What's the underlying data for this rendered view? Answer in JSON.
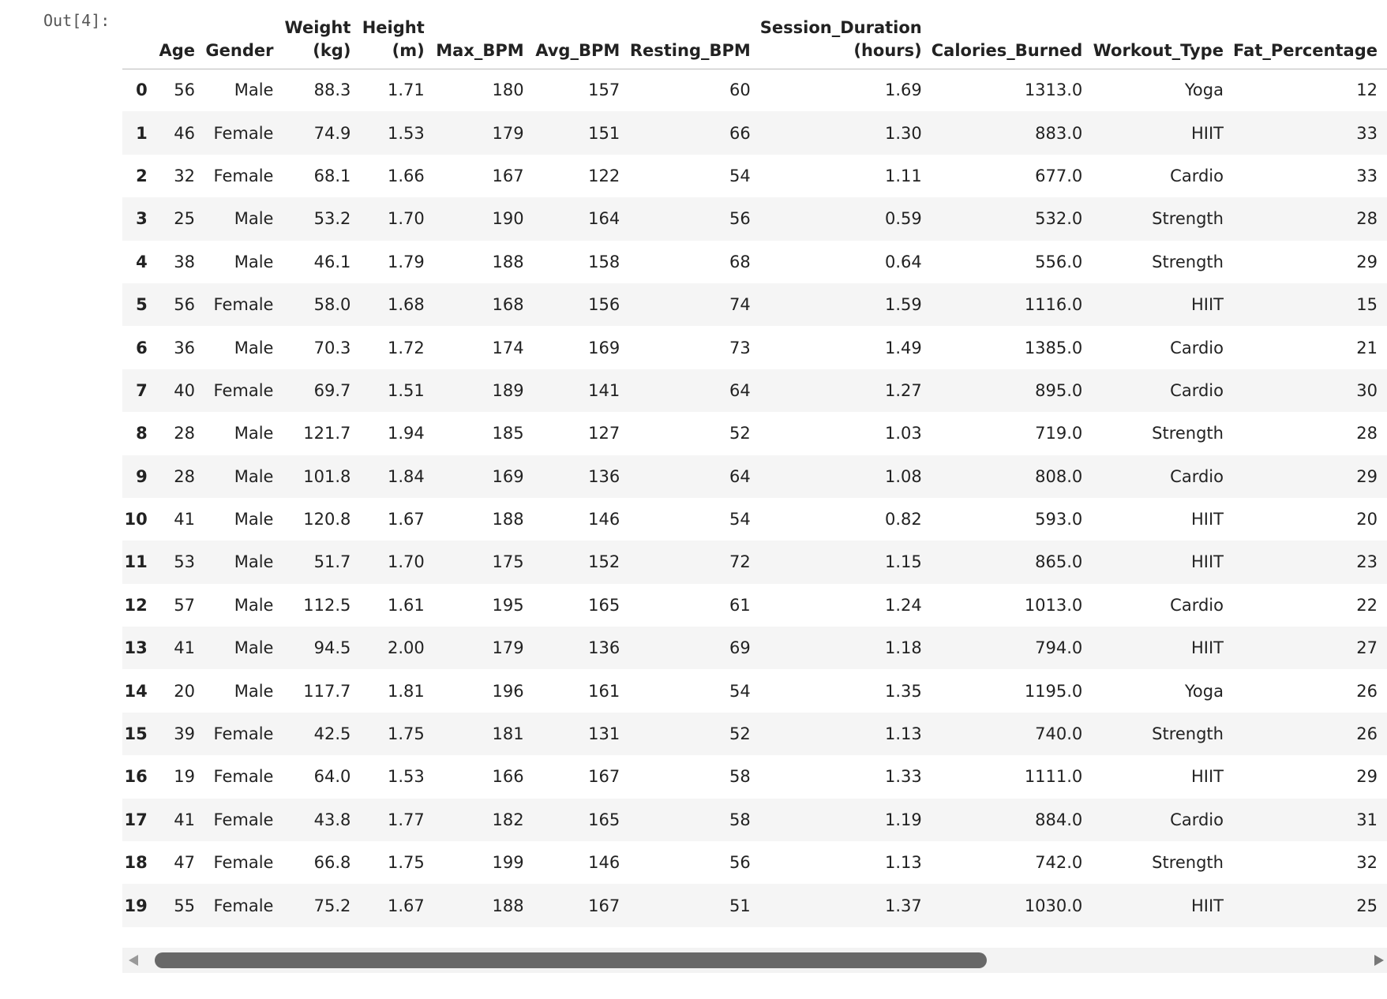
{
  "output_prompt": "Out[4]:",
  "table": {
    "columns": [
      "Age",
      "Gender",
      "Weight\n(kg)",
      "Height\n(m)",
      "Max_BPM",
      "Avg_BPM",
      "Resting_BPM",
      "Session_Duration\n(hours)",
      "Calories_Burned",
      "Workout_Type",
      "Fat_Percentage"
    ],
    "index": [
      "0",
      "1",
      "2",
      "3",
      "4",
      "5",
      "6",
      "7",
      "8",
      "9",
      "10",
      "11",
      "12",
      "13",
      "14",
      "15",
      "16",
      "17",
      "18",
      "19"
    ],
    "rows": [
      [
        "56",
        "Male",
        "88.3",
        "1.71",
        "180",
        "157",
        "60",
        "1.69",
        "1313.0",
        "Yoga",
        "12"
      ],
      [
        "46",
        "Female",
        "74.9",
        "1.53",
        "179",
        "151",
        "66",
        "1.30",
        "883.0",
        "HIIT",
        "33"
      ],
      [
        "32",
        "Female",
        "68.1",
        "1.66",
        "167",
        "122",
        "54",
        "1.11",
        "677.0",
        "Cardio",
        "33"
      ],
      [
        "25",
        "Male",
        "53.2",
        "1.70",
        "190",
        "164",
        "56",
        "0.59",
        "532.0",
        "Strength",
        "28"
      ],
      [
        "38",
        "Male",
        "46.1",
        "1.79",
        "188",
        "158",
        "68",
        "0.64",
        "556.0",
        "Strength",
        "29"
      ],
      [
        "56",
        "Female",
        "58.0",
        "1.68",
        "168",
        "156",
        "74",
        "1.59",
        "1116.0",
        "HIIT",
        "15"
      ],
      [
        "36",
        "Male",
        "70.3",
        "1.72",
        "174",
        "169",
        "73",
        "1.49",
        "1385.0",
        "Cardio",
        "21"
      ],
      [
        "40",
        "Female",
        "69.7",
        "1.51",
        "189",
        "141",
        "64",
        "1.27",
        "895.0",
        "Cardio",
        "30"
      ],
      [
        "28",
        "Male",
        "121.7",
        "1.94",
        "185",
        "127",
        "52",
        "1.03",
        "719.0",
        "Strength",
        "28"
      ],
      [
        "28",
        "Male",
        "101.8",
        "1.84",
        "169",
        "136",
        "64",
        "1.08",
        "808.0",
        "Cardio",
        "29"
      ],
      [
        "41",
        "Male",
        "120.8",
        "1.67",
        "188",
        "146",
        "54",
        "0.82",
        "593.0",
        "HIIT",
        "20"
      ],
      [
        "53",
        "Male",
        "51.7",
        "1.70",
        "175",
        "152",
        "72",
        "1.15",
        "865.0",
        "HIIT",
        "23"
      ],
      [
        "57",
        "Male",
        "112.5",
        "1.61",
        "195",
        "165",
        "61",
        "1.24",
        "1013.0",
        "Cardio",
        "22"
      ],
      [
        "41",
        "Male",
        "94.5",
        "2.00",
        "179",
        "136",
        "69",
        "1.18",
        "794.0",
        "HIIT",
        "27"
      ],
      [
        "20",
        "Male",
        "117.7",
        "1.81",
        "196",
        "161",
        "54",
        "1.35",
        "1195.0",
        "Yoga",
        "26"
      ],
      [
        "39",
        "Female",
        "42.5",
        "1.75",
        "181",
        "131",
        "52",
        "1.13",
        "740.0",
        "Strength",
        "26"
      ],
      [
        "19",
        "Female",
        "64.0",
        "1.53",
        "166",
        "167",
        "58",
        "1.33",
        "1111.0",
        "HIIT",
        "29"
      ],
      [
        "41",
        "Female",
        "43.8",
        "1.77",
        "182",
        "165",
        "58",
        "1.19",
        "884.0",
        "Cardio",
        "31"
      ],
      [
        "47",
        "Female",
        "66.8",
        "1.75",
        "199",
        "146",
        "56",
        "1.13",
        "742.0",
        "Strength",
        "32"
      ],
      [
        "55",
        "Female",
        "75.2",
        "1.67",
        "188",
        "167",
        "51",
        "1.37",
        "1030.0",
        "HIIT",
        "25"
      ]
    ]
  }
}
